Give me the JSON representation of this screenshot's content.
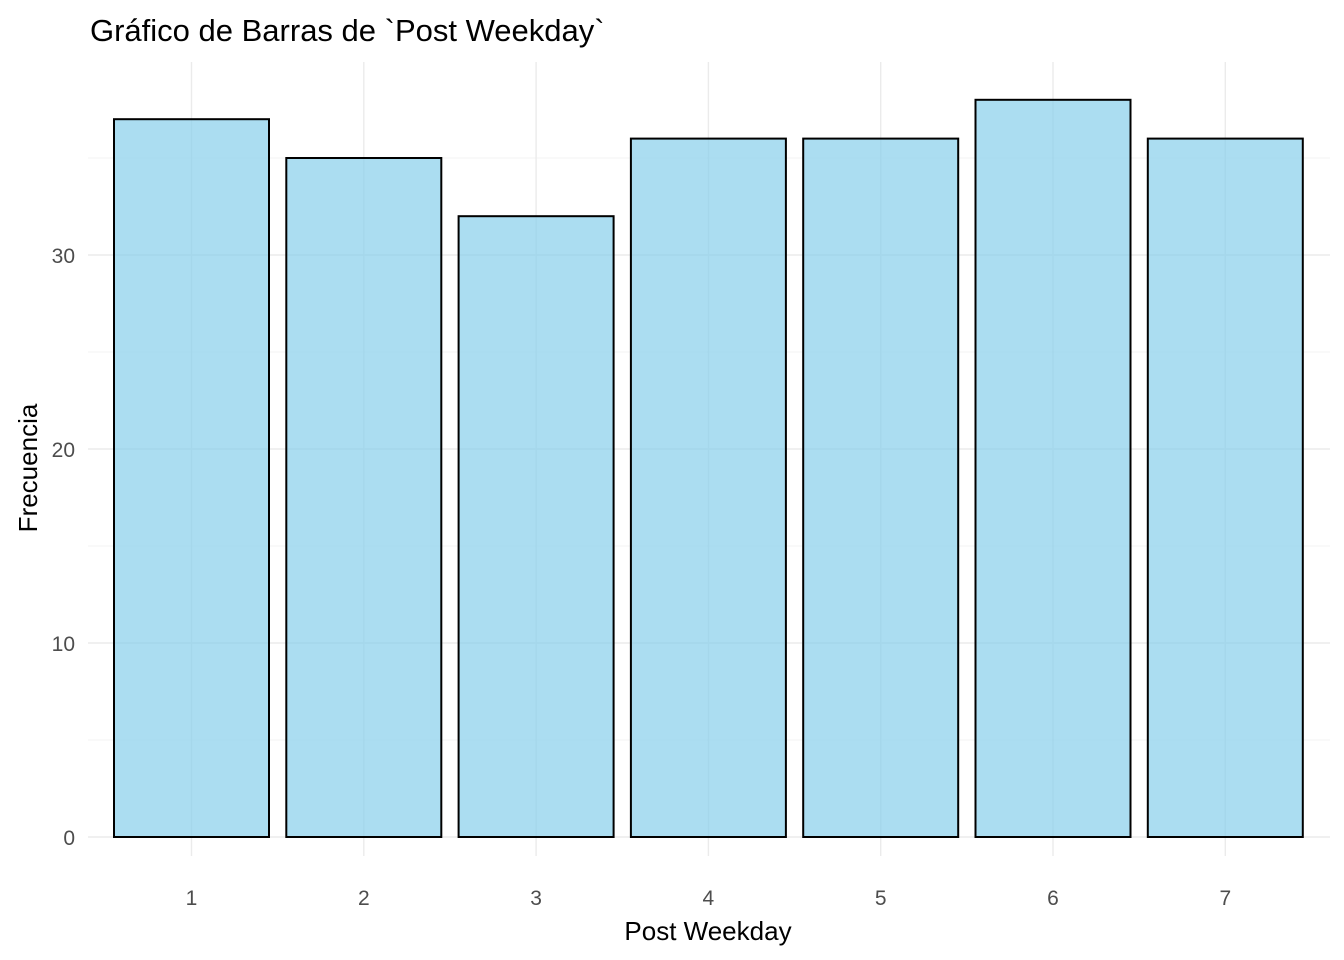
{
  "chart_data": {
    "type": "bar",
    "title": "Gráfico de Barras de `Post Weekday`",
    "xlabel": "Post Weekday",
    "ylabel": "Frecuencia",
    "categories": [
      "1",
      "2",
      "3",
      "4",
      "5",
      "6",
      "7"
    ],
    "values": [
      37,
      35,
      32,
      36,
      36,
      38,
      36
    ],
    "ylim": [
      0,
      40
    ],
    "yticks": [
      "0",
      "10",
      "20",
      "30"
    ],
    "grid": true,
    "legend": "none",
    "colors": {
      "bar_fill": "#87CEEB",
      "bar_fill_opacity": 0.7,
      "bar_stroke": "#000000"
    }
  }
}
